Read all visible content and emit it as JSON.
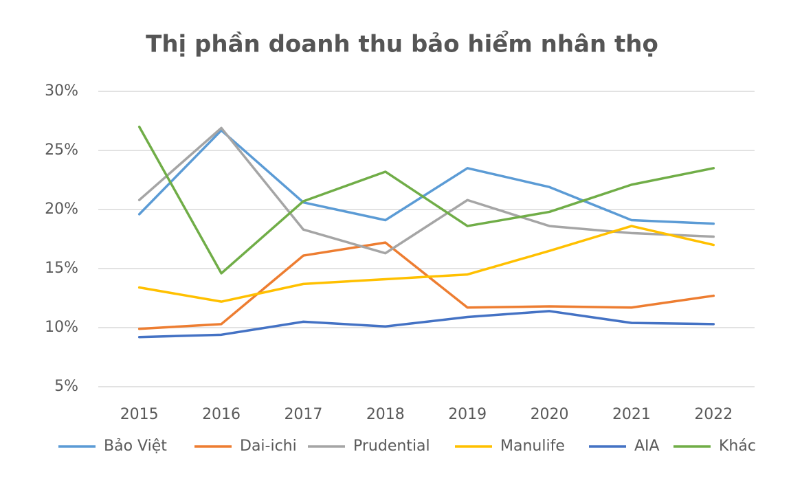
{
  "chart_data": {
    "type": "line",
    "title": "Thị phần doanh thu bảo hiểm nhân thọ",
    "categories": [
      "2015",
      "2016",
      "2017",
      "2018",
      "2019",
      "2020",
      "2021",
      "2022"
    ],
    "series": [
      {
        "name": "Bảo Việt",
        "color": "#5b9bd5",
        "values": [
          19.6,
          26.7,
          20.6,
          19.1,
          23.5,
          21.9,
          19.1,
          18.8
        ]
      },
      {
        "name": "Dai-ichi",
        "color": "#ed7d31",
        "values": [
          9.9,
          10.3,
          16.1,
          17.2,
          11.7,
          11.8,
          11.7,
          12.7
        ]
      },
      {
        "name": "Prudential",
        "color": "#a5a5a5",
        "values": [
          20.8,
          26.9,
          18.3,
          16.3,
          20.8,
          18.6,
          18.0,
          17.7
        ]
      },
      {
        "name": "Manulife",
        "color": "#ffc000",
        "values": [
          13.4,
          12.2,
          13.7,
          14.1,
          14.5,
          16.5,
          18.6,
          17.0
        ]
      },
      {
        "name": "AIA",
        "color": "#4472c4",
        "values": [
          9.2,
          9.4,
          10.5,
          10.1,
          10.9,
          11.4,
          10.4,
          10.3
        ]
      },
      {
        "name": "Khác",
        "color": "#70ad47",
        "values": [
          27.0,
          14.6,
          20.7,
          23.2,
          18.6,
          19.8,
          22.1,
          23.5
        ]
      }
    ],
    "ylim": [
      5,
      30
    ],
    "yticks": [
      {
        "value": 5,
        "label": "5%"
      },
      {
        "value": 10,
        "label": "10%"
      },
      {
        "value": 15,
        "label": "15%"
      },
      {
        "value": 20,
        "label": "20%"
      },
      {
        "value": 25,
        "label": "25%"
      },
      {
        "value": 30,
        "label": "30%"
      }
    ],
    "grid": true,
    "legend": "bottom"
  }
}
